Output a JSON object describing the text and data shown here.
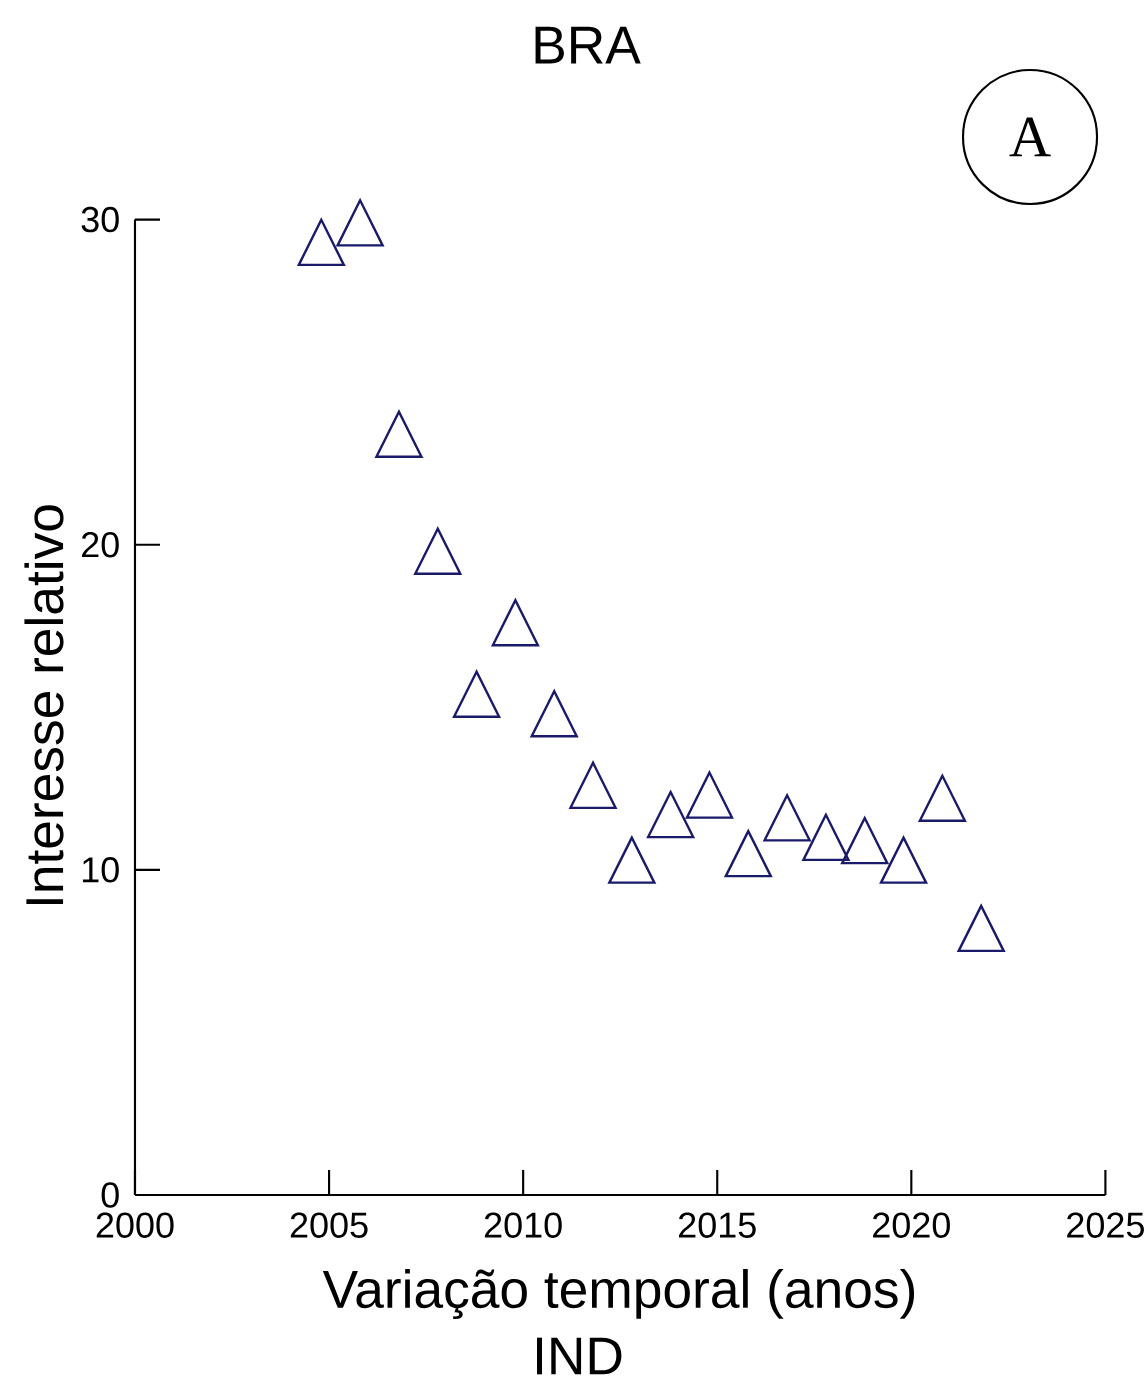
{
  "chart_data": {
    "type": "scatter",
    "title": "BRA",
    "xlabel": "Variação temporal (anos)",
    "ylabel": "Interesse relativo",
    "annotations": [
      "A",
      "IND"
    ],
    "x": [
      2004.8,
      2005.8,
      2006.8,
      2007.8,
      2008.8,
      2009.8,
      2010.8,
      2011.8,
      2012.8,
      2013.8,
      2014.8,
      2015.8,
      2016.8,
      2017.8,
      2018.8,
      2019.8,
      2020.8,
      2021.8
    ],
    "values": [
      29.3,
      29.9,
      23.4,
      19.8,
      15.4,
      17.6,
      14.8,
      12.6,
      10.3,
      11.7,
      12.3,
      10.5,
      11.6,
      11.0,
      10.9,
      10.3,
      12.2,
      8.2
    ],
    "color": "#1a1a6a",
    "marker": "triangle",
    "xlim": [
      2000,
      2025
    ],
    "ylim": [
      0,
      30
    ],
    "xticks": [
      2000,
      2005,
      2010,
      2015,
      2020,
      2025
    ],
    "yticks": [
      0,
      10,
      20,
      30
    ]
  }
}
